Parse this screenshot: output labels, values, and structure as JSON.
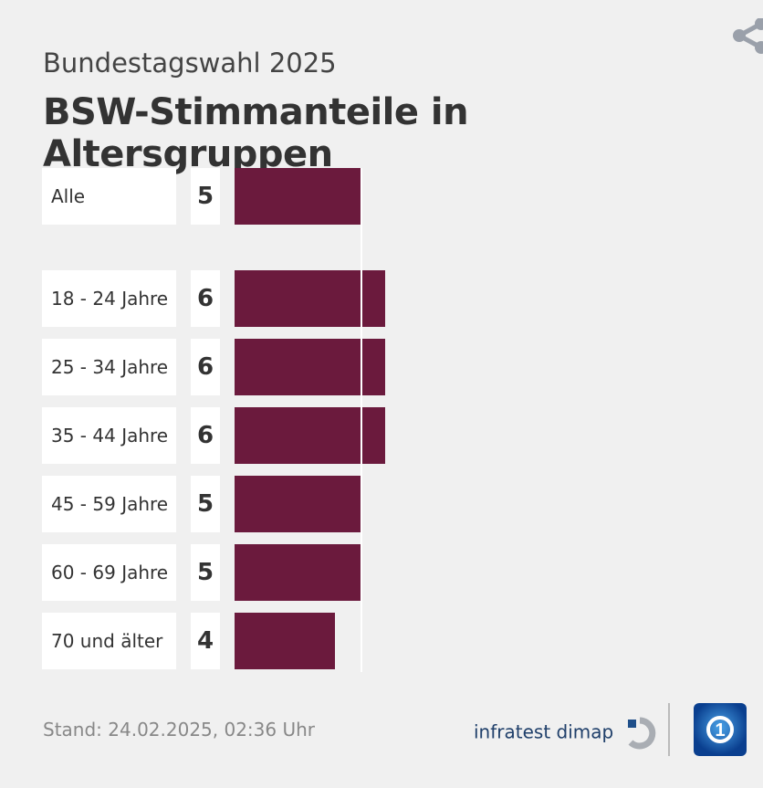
{
  "header": {
    "subtitle": "Bundestagswahl 2025",
    "title": "BSW-Stimmanteile in Altersgruppen"
  },
  "chart_data": {
    "type": "bar",
    "orientation": "horizontal",
    "title": "BSW-Stimmanteile in Altersgruppen",
    "categories": [
      "Alle",
      "18 - 24 Jahre",
      "25 - 34 Jahre",
      "35 - 44 Jahre",
      "45 - 59 Jahre",
      "60 - 69 Jahre",
      "70 und älter"
    ],
    "values": [
      5,
      6,
      6,
      6,
      5,
      5,
      4
    ],
    "unit": "%",
    "reference_line": 5,
    "color": "#6b1a3d"
  },
  "footer": {
    "stand": "Stand:  24.02.2025, 02:36 Uhr",
    "source_logo": "infratest dimap",
    "broadcaster_logo": "ARD"
  }
}
